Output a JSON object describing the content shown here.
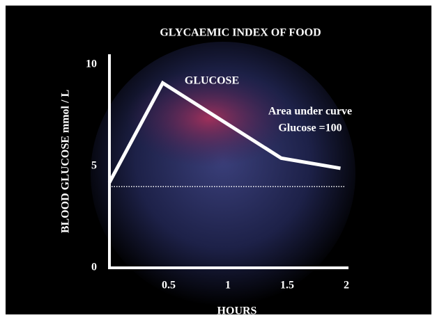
{
  "chart_data": {
    "type": "line",
    "title": "GLYCAEMIC INDEX OF FOOD",
    "x_label": "HOURS",
    "y_label": "BLOOD  GLUCOSE  mmol  /  L",
    "x": [
      0,
      0.45,
      1.45,
      1.95
    ],
    "series": [
      {
        "name": "GLUCOSE",
        "color": "#ffffff",
        "values": [
          4.2,
          9.1,
          5.4,
          4.9
        ]
      }
    ],
    "reference_line": 4.0,
    "annotations": [
      "Area under curve",
      "Glucose =100"
    ],
    "xlim": [
      0,
      2
    ],
    "xticks": [
      0.5,
      1,
      1.5,
      2
    ],
    "ylim": [
      0,
      10
    ],
    "yticks": [
      0,
      5,
      10
    ]
  }
}
